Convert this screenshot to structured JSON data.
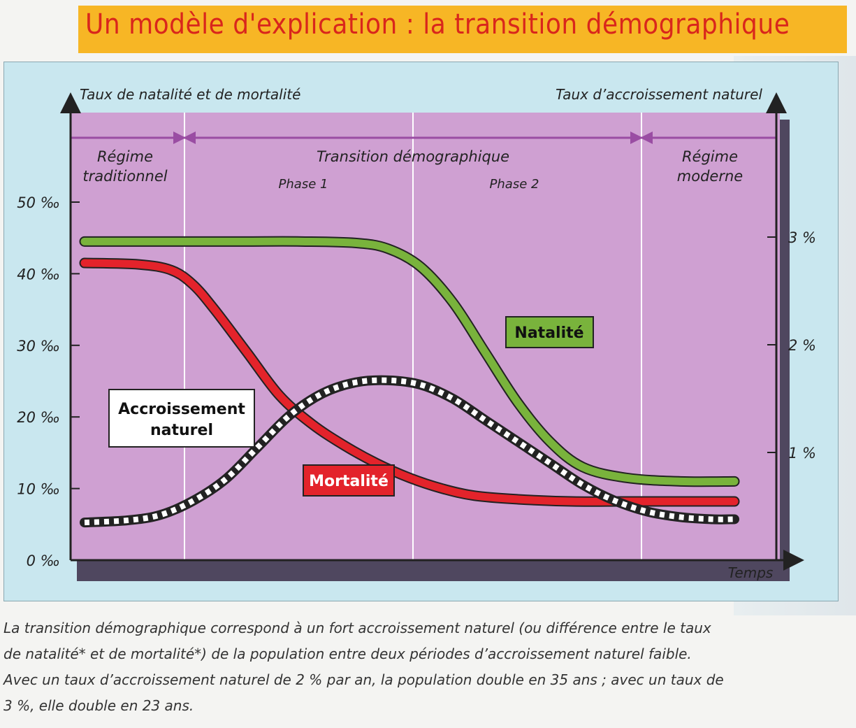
{
  "title": "Un modèle d'explication : la transition démographique",
  "caption": [
    "La transition démographique correspond à un fort accroissement naturel (ou différence entre le taux",
    "de natalité* et de mortalité*) de la population entre deux périodes d’accroissement naturel faible.",
    "Avec un taux d’accroissement naturel de 2 % par an, la population double en 35 ans ; avec un taux de",
    "3 %, elle double en 23 ans."
  ],
  "colors": {
    "background": "#c9e7ef",
    "plot_area": "#cfa0d2",
    "period_arrows": "#9a4da3",
    "natalite": "#79b33c",
    "mortalite": "#e3232b",
    "accroissement": "#222222",
    "banner": "#f7b625",
    "title": "#d9261c"
  },
  "chart_data": {
    "type": "line",
    "ylabel_left": "Taux de natalité et de mortalité",
    "ylabel_right": "Taux d’accroissement naturel",
    "xlabel": "Temps",
    "ylim_left": [
      0,
      50
    ],
    "ylim_right": [
      0,
      3.5
    ],
    "left_ticks": [
      "0 ‰",
      "10 ‰",
      "20 ‰",
      "30 ‰",
      "40 ‰",
      "50 ‰"
    ],
    "left_tick_values": [
      0,
      10,
      20,
      30,
      40,
      50
    ],
    "right_ticks": [
      "1 %",
      "2 %",
      "3 %"
    ],
    "right_tick_values": [
      1,
      2,
      3
    ],
    "periods": [
      {
        "label_lines": [
          "Régime",
          "traditionnel"
        ]
      },
      {
        "label_lines": [
          "Transition démographique"
        ],
        "phases": [
          "Phase 1",
          "Phase 2"
        ]
      },
      {
        "label_lines": [
          "Régime",
          "moderne"
        ]
      }
    ],
    "series": [
      {
        "name": "Natalité",
        "axis": "left",
        "x": [
          0,
          5,
          10,
          15,
          20,
          25,
          28,
          31,
          34,
          37,
          40,
          43,
          46,
          50,
          55,
          60
        ],
        "y": [
          44.5,
          44.5,
          44.5,
          44.5,
          44.5,
          44.3,
          43.5,
          41,
          36,
          29,
          22,
          16.5,
          13,
          11.5,
          11,
          11
        ]
      },
      {
        "name": "Mortalité",
        "axis": "left",
        "x": [
          0,
          5,
          8,
          10,
          12,
          15,
          18,
          21,
          24,
          27,
          30,
          33,
          36,
          40,
          45,
          50,
          55,
          60
        ],
        "y": [
          41.5,
          41.3,
          40.5,
          38.5,
          35,
          29,
          23,
          19,
          16,
          13.5,
          11.5,
          10,
          9,
          8.5,
          8.2,
          8.2,
          8.2,
          8.2
        ]
      },
      {
        "name": "Accroissement naturel",
        "axis": "right",
        "x": [
          0,
          4,
          7,
          10,
          13,
          16,
          19,
          22,
          25,
          28,
          31,
          34,
          37,
          40,
          43,
          46,
          49,
          52,
          55,
          58,
          60
        ],
        "y": [
          0.35,
          0.37,
          0.42,
          0.55,
          0.75,
          1.05,
          1.35,
          1.55,
          1.65,
          1.67,
          1.63,
          1.5,
          1.3,
          1.1,
          0.9,
          0.7,
          0.55,
          0.45,
          0.4,
          0.38,
          0.38
        ]
      }
    ],
    "series_labels": [
      "Natalité",
      "Mortalité",
      "Accroissement\nnaturel"
    ]
  }
}
